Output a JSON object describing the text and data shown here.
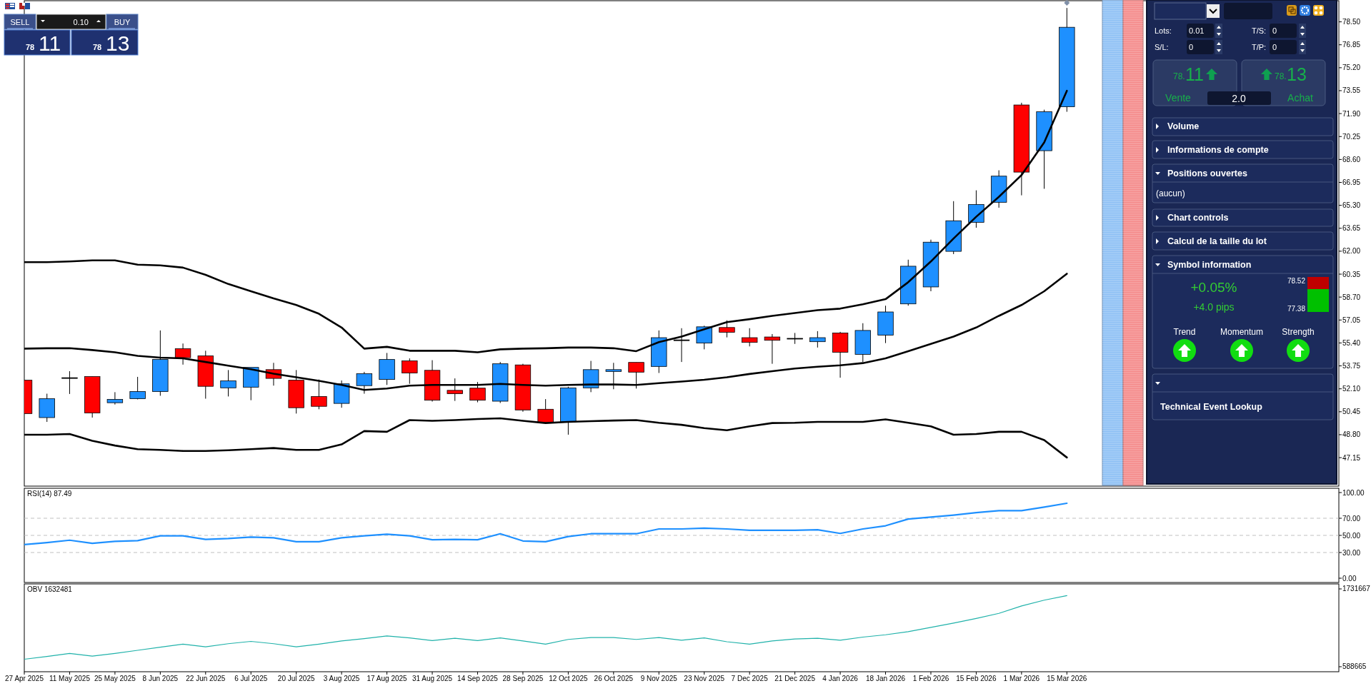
{
  "chart_data": [
    {
      "type": "candlestick",
      "x": [
        "2025-04-27",
        "2025-05-04",
        "2025-05-11",
        "2025-05-18",
        "2025-05-25",
        "2025-06-01",
        "2025-06-08",
        "2025-06-15",
        "2025-06-22",
        "2025-06-29",
        "2025-07-06",
        "2025-07-13",
        "2025-07-20",
        "2025-07-27",
        "2025-08-03",
        "2025-08-10",
        "2025-08-17",
        "2025-08-24",
        "2025-08-31",
        "2025-09-07",
        "2025-09-14",
        "2025-09-21",
        "2025-09-28",
        "2025-10-05",
        "2025-10-12",
        "2025-10-19",
        "2025-10-26",
        "2025-11-02",
        "2025-11-09",
        "2025-11-16",
        "2025-11-23",
        "2025-11-30",
        "2025-12-07",
        "2025-12-14",
        "2025-12-21",
        "2025-12-28",
        "2026-01-04",
        "2026-01-11",
        "2026-01-18",
        "2026-01-25",
        "2026-02-01",
        "2026-02-08",
        "2026-02-15",
        "2026-02-22",
        "2026-03-01",
        "2026-03-08",
        "2026-03-15"
      ],
      "ohlc": [
        [
          52.72,
          52.72,
          50.32,
          50.32
        ],
        [
          50.03,
          51.75,
          49.72,
          51.39
        ],
        [
          52.9,
          53.37,
          51.73,
          52.9
        ],
        [
          52.98,
          52.98,
          50.03,
          50.37
        ],
        [
          51.1,
          51.86,
          50.97,
          51.34
        ],
        [
          51.39,
          52.96,
          51.34,
          51.91
        ],
        [
          51.91,
          56.3,
          51.6,
          54.21
        ],
        [
          54.99,
          55.36,
          53.84,
          54.34
        ],
        [
          54.47,
          54.84,
          51.39,
          52.28
        ],
        [
          52.17,
          53.45,
          51.55,
          52.67
        ],
        [
          52.22,
          53.64,
          51.28,
          53.64
        ],
        [
          53.48,
          53.97,
          52.33,
          52.85
        ],
        [
          52.72,
          53.45,
          50.32,
          50.74
        ],
        [
          51.55,
          52.77,
          50.63,
          50.84
        ],
        [
          51.05,
          52.7,
          50.74,
          52.46
        ],
        [
          52.33,
          53.32,
          51.75,
          53.19
        ],
        [
          52.77,
          54.68,
          52.38,
          54.21
        ],
        [
          54.11,
          54.29,
          52.46,
          53.24
        ],
        [
          53.43,
          54.16,
          51.18,
          51.28
        ],
        [
          51.99,
          52.85,
          51.23,
          51.75
        ],
        [
          52.15,
          52.59,
          51.13,
          51.28
        ],
        [
          51.21,
          54.03,
          51.08,
          53.9
        ],
        [
          53.82,
          53.9,
          50.45,
          50.58
        ],
        [
          50.63,
          51.36,
          49.59,
          49.66
        ],
        [
          49.72,
          52.25,
          48.8,
          52.17
        ],
        [
          52.17,
          54.11,
          51.86,
          53.48
        ],
        [
          53.35,
          53.97,
          52.07,
          53.48
        ],
        [
          54.0,
          54.0,
          52.12,
          53.3
        ],
        [
          53.71,
          56.3,
          53.24,
          55.78
        ],
        [
          55.62,
          56.46,
          54.03,
          55.62
        ],
        [
          55.39,
          56.64,
          54.94,
          56.56
        ],
        [
          56.51,
          57.03,
          55.8,
          56.17
        ],
        [
          55.78,
          56.46,
          55.15,
          55.44
        ],
        [
          55.83,
          56.04,
          53.9,
          55.59
        ],
        [
          55.73,
          56.12,
          55.33,
          55.73
        ],
        [
          55.49,
          56.25,
          55.07,
          55.78
        ],
        [
          56.12,
          56.2,
          52.9,
          54.73
        ],
        [
          54.58,
          56.82,
          54.03,
          56.3
        ],
        [
          55.96,
          58.08,
          55.39,
          57.63
        ],
        [
          58.21,
          61.39,
          58.08,
          60.92
        ],
        [
          59.43,
          62.83,
          59.12,
          62.65
        ],
        [
          61.99,
          65.6,
          61.79,
          64.19
        ],
        [
          64.08,
          66.38,
          63.69,
          65.36
        ],
        [
          65.52,
          67.82,
          65.13,
          67.4
        ],
        [
          72.52,
          72.68,
          66.02,
          67.69
        ],
        [
          69.23,
          72.18,
          66.49,
          72.03
        ],
        [
          72.39,
          79.5,
          72.03,
          78.11
        ]
      ],
      "colors": [
        "#ff0000",
        "#1e90ff",
        "#000000",
        "#ff0000",
        "#1e90ff",
        "#1e90ff",
        "#1e90ff",
        "#ff0000",
        "#ff0000",
        "#1e90ff",
        "#1e90ff",
        "#ff0000",
        "#ff0000",
        "#ff0000",
        "#1e90ff",
        "#1e90ff",
        "#1e90ff",
        "#ff0000",
        "#ff0000",
        "#ff0000",
        "#ff0000",
        "#1e90ff",
        "#ff0000",
        "#ff0000",
        "#1e90ff",
        "#1e90ff",
        "#1e90ff",
        "#ff0000",
        "#1e90ff",
        "#000000",
        "#1e90ff",
        "#ff0000",
        "#ff0000",
        "#ff0000",
        "#000000",
        "#1e90ff",
        "#ff0000",
        "#1e90ff",
        "#1e90ff",
        "#1e90ff",
        "#1e90ff",
        "#1e90ff",
        "#1e90ff",
        "#1e90ff",
        "#ff0000",
        "#1e90ff",
        "#1e90ff"
      ],
      "series": [
        {
          "type": "line",
          "color": "#000000",
          "values": [
            61.21,
            61.21,
            61.26,
            61.34,
            61.34,
            61.03,
            60.98,
            60.82,
            60.3,
            59.64,
            59.12,
            58.6,
            58.13,
            57.5,
            56.51,
            54.99,
            55.12,
            54.84,
            54.84,
            54.84,
            54.73,
            54.94,
            54.99,
            55.02,
            55.07,
            55.07,
            55.02,
            54.81,
            55.46,
            55.86,
            56.38,
            56.9,
            57.11,
            57.35,
            57.55,
            57.76,
            57.87,
            58.18,
            58.55,
            59.77,
            61.26,
            62.91,
            64.48,
            65.91,
            67.48,
            69.83,
            73.54
          ]
        },
        {
          "type": "line",
          "color": "#000000",
          "values": [
            54.99,
            55.02,
            55.02,
            54.89,
            54.73,
            54.47,
            54.34,
            54.29,
            54.03,
            53.77,
            53.51,
            53.19,
            52.93,
            52.67,
            52.38,
            52.02,
            52.12,
            52.33,
            52.38,
            52.38,
            52.38,
            52.46,
            52.38,
            52.33,
            52.38,
            52.41,
            52.41,
            52.38,
            52.51,
            52.62,
            52.75,
            52.93,
            53.17,
            53.37,
            53.56,
            53.69,
            53.79,
            53.95,
            54.29,
            54.81,
            55.33,
            55.86,
            56.51,
            57.35,
            58.13,
            59.12,
            60.38
          ]
        },
        {
          "type": "line",
          "color": "#000000",
          "values": [
            48.8,
            48.8,
            48.85,
            48.36,
            48.02,
            47.76,
            47.71,
            47.63,
            47.63,
            47.68,
            47.76,
            47.84,
            47.71,
            47.71,
            48.1,
            49.06,
            49.01,
            49.85,
            49.8,
            49.85,
            49.93,
            49.98,
            49.8,
            49.64,
            49.72,
            49.77,
            49.82,
            49.85,
            49.66,
            49.51,
            49.27,
            49.12,
            49.4,
            49.64,
            49.66,
            49.72,
            49.72,
            49.72,
            49.9,
            49.66,
            49.4,
            48.8,
            48.85,
            49.01,
            49.01,
            48.41,
            47.16
          ]
        }
      ],
      "xlim": [
        "2025-04-27",
        "2026-06-07"
      ],
      "ylim": [
        45.1,
        80.02
      ],
      "yticks": [
        {
          "value": 78.5,
          "label": "78.50"
        },
        {
          "value": 76.85,
          "label": "76.85"
        },
        {
          "value": 75.2,
          "label": "75.20"
        },
        {
          "value": 73.55,
          "label": "73.55"
        },
        {
          "value": 71.9,
          "label": "71.90"
        },
        {
          "value": 70.25,
          "label": "70.25"
        },
        {
          "value": 68.6,
          "label": "68.60"
        },
        {
          "value": 66.95,
          "label": "66.95"
        },
        {
          "value": 65.3,
          "label": "65.30"
        },
        {
          "value": 63.65,
          "label": "63.65"
        },
        {
          "value": 62,
          "label": "62.00"
        },
        {
          "value": 60.35,
          "label": "60.35"
        },
        {
          "value": 58.7,
          "label": "58.70"
        },
        {
          "value": 57.05,
          "label": "57.05"
        },
        {
          "value": 55.4,
          "label": "55.40"
        },
        {
          "value": 53.75,
          "label": "53.75"
        },
        {
          "value": 52.1,
          "label": "52.10"
        },
        {
          "value": 50.45,
          "label": "50.45"
        },
        {
          "value": 48.8,
          "label": "48.80"
        },
        {
          "value": 47.15,
          "label": "47.15"
        }
      ],
      "tick_labels": "y"
    },
    {
      "type": "line",
      "title": "RSI(14) 87.49",
      "x": [
        "2025-04-27",
        "2025-05-04",
        "2025-05-11",
        "2025-05-18",
        "2025-05-25",
        "2025-06-01",
        "2025-06-08",
        "2025-06-15",
        "2025-06-22",
        "2025-06-29",
        "2025-07-06",
        "2025-07-13",
        "2025-07-20",
        "2025-07-27",
        "2025-08-03",
        "2025-08-10",
        "2025-08-17",
        "2025-08-24",
        "2025-08-31",
        "2025-09-07",
        "2025-09-14",
        "2025-09-21",
        "2025-09-28",
        "2025-10-05",
        "2025-10-12",
        "2025-10-19",
        "2025-10-26",
        "2025-11-02",
        "2025-11-09",
        "2025-11-16",
        "2025-11-23",
        "2025-11-30",
        "2025-12-07",
        "2025-12-14",
        "2025-12-21",
        "2025-12-28",
        "2026-01-04",
        "2026-01-11",
        "2026-01-18",
        "2026-01-25",
        "2026-02-01",
        "2026-02-08",
        "2026-02-15",
        "2026-02-22",
        "2026-03-01",
        "2026-03-08",
        "2026-03-15"
      ],
      "series": [
        {
          "color": "#1e90ff",
          "values": [
            39.3,
            41.6,
            44.4,
            40.7,
            43.0,
            43.9,
            49.5,
            49.5,
            45.3,
            46.3,
            48.1,
            47.2,
            42.6,
            42.6,
            47.2,
            49.5,
            51.4,
            49.5,
            44.9,
            45.3,
            44.9,
            51.9,
            43.5,
            42.6,
            48.6,
            51.9,
            51.9,
            51.9,
            57.5,
            57.5,
            58.4,
            57.5,
            56.0,
            56.0,
            56.0,
            56.5,
            52.3,
            57.5,
            61.2,
            69.1,
            71.4,
            73.7,
            76.5,
            78.8,
            78.8,
            83.0,
            87.49
          ]
        }
      ],
      "xlim": [
        "2025-04-27",
        "2026-06-07"
      ],
      "ylim": [
        -5,
        105
      ],
      "yticks": [
        {
          "value": 100,
          "label": "100.00"
        },
        {
          "value": 70,
          "label": "70.00"
        },
        {
          "value": 50,
          "label": "50.00"
        },
        {
          "value": 30,
          "label": "30.00"
        },
        {
          "value": 0,
          "label": "0.00"
        }
      ],
      "ref_lines": [
        {
          "axis": "y",
          "value": 70,
          "color": "#c0c0c0",
          "line_style": "dashed"
        },
        {
          "axis": "y",
          "value": 50,
          "color": "#c0c0c0",
          "line_style": "dashed"
        },
        {
          "axis": "y",
          "value": 30,
          "color": "#c0c0c0",
          "line_style": "dashed"
        }
      ],
      "tick_labels": "y"
    },
    {
      "type": "line",
      "title": "OBV 1632481",
      "x": [
        "2025-04-27",
        "2025-05-04",
        "2025-05-11",
        "2025-05-18",
        "2025-05-25",
        "2025-06-01",
        "2025-06-08",
        "2025-06-15",
        "2025-06-22",
        "2025-06-29",
        "2025-07-06",
        "2025-07-13",
        "2025-07-20",
        "2025-07-27",
        "2025-08-03",
        "2025-08-10",
        "2025-08-17",
        "2025-08-24",
        "2025-08-31",
        "2025-09-07",
        "2025-09-14",
        "2025-09-21",
        "2025-09-28",
        "2025-10-05",
        "2025-10-12",
        "2025-10-19",
        "2025-10-26",
        "2025-11-02",
        "2025-11-09",
        "2025-11-16",
        "2025-11-23",
        "2025-11-30",
        "2025-12-07",
        "2025-12-14",
        "2025-12-21",
        "2025-12-28",
        "2026-01-04",
        "2026-01-11",
        "2026-01-18",
        "2026-01-25",
        "2026-02-01",
        "2026-02-08",
        "2026-02-15",
        "2026-02-22",
        "2026-03-01",
        "2026-03-08",
        "2026-03-15"
      ],
      "series": [
        {
          "color": "#20b2aa",
          "values": [
            698400,
            738400,
            784000,
            744100,
            784000,
            829700,
            875300,
            921000,
            881100,
            926800,
            961000,
            926800,
            881100,
            921000,
            966700,
            1000900,
            1040900,
            1012400,
            972400,
            1006700,
            972400,
            1012400,
            966700,
            921000,
            989600,
            1018100,
            1018100,
            989600,
            1018100,
            978100,
            1012400,
            955300,
            921000,
            966700,
            995200,
            1006700,
            978100,
            1023800,
            1058000,
            1103700,
            1166500,
            1229200,
            1297800,
            1372100,
            1480500,
            1566200,
            1632481
          ]
        }
      ],
      "xlim": [
        "2025-04-27",
        "2026-06-07"
      ],
      "ylim": [
        515000,
        1805000
      ],
      "yticks": [
        1731667,
        588665
      ],
      "xticks": [
        {
          "value": "2025-04-27",
          "label": "27 Apr 2025"
        },
        {
          "value": "2025-05-11",
          "label": "11 May 2025"
        },
        {
          "value": "2025-05-25",
          "label": "25 May 2025"
        },
        {
          "value": "2025-06-08",
          "label": "8 Jun 2025"
        },
        {
          "value": "2025-06-22",
          "label": "22 Jun 2025"
        },
        {
          "value": "2025-07-06",
          "label": "6 Jul 2025"
        },
        {
          "value": "2025-07-20",
          "label": "20 Jul 2025"
        },
        {
          "value": "2025-08-03",
          "label": "3 Aug 2025"
        },
        {
          "value": "2025-08-17",
          "label": "17 Aug 2025"
        },
        {
          "value": "2025-08-31",
          "label": "31 Aug 2025"
        },
        {
          "value": "2025-09-14",
          "label": "14 Sep 2025"
        },
        {
          "value": "2025-09-28",
          "label": "28 Sep 2025"
        },
        {
          "value": "2025-10-12",
          "label": "12 Oct 2025"
        },
        {
          "value": "2025-10-26",
          "label": "26 Oct 2025"
        },
        {
          "value": "2025-11-09",
          "label": "9 Nov 2025"
        },
        {
          "value": "2025-11-23",
          "label": "23 Nov 2025"
        },
        {
          "value": "2025-12-07",
          "label": "7 Dec 2025"
        },
        {
          "value": "2025-12-21",
          "label": "21 Dec 2025"
        },
        {
          "value": "2026-01-04",
          "label": "4 Jan 2026"
        },
        {
          "value": "2026-01-18",
          "label": "18 Jan 2026"
        },
        {
          "value": "2026-02-01",
          "label": "1 Feb 2026"
        },
        {
          "value": "2026-02-15",
          "label": "15 Feb 2026"
        },
        {
          "value": "2026-03-01",
          "label": "1 Mar 2026"
        },
        {
          "value": "2026-03-15",
          "label": "15 Mar 2026"
        }
      ]
    },
    {
      "type": "other",
      "annotations": [
        "Lots:",
        "0.01",
        "T/S:",
        "0",
        "S/L:",
        "0",
        "T/P:",
        "0",
        "78.",
        "11",
        "78.",
        "13",
        "Vente",
        "2.0",
        "Achat",
        "Volume",
        "Informations de compte",
        "Positions ouvertes",
        "(aucun)",
        "Chart controls",
        "Calcul de la taille du lot",
        "Symbol information",
        "+0.05%",
        "+4.0 pips",
        "78.52",
        "77.38",
        "Trend",
        "Momentum",
        "Strength",
        "Technical Event Lookup"
      ]
    },
    {
      "type": "other",
      "annotations": [
        "SELL",
        "0.10",
        "BUY",
        "78",
        "11",
        "78",
        "13"
      ]
    }
  ]
}
